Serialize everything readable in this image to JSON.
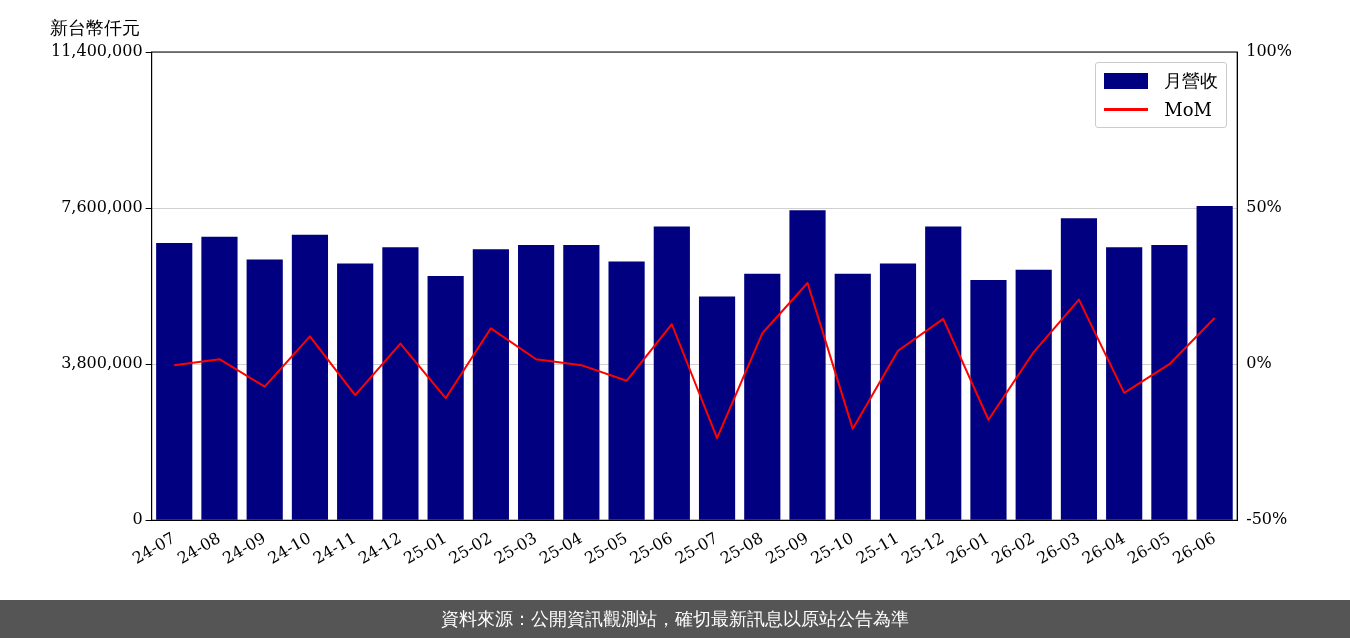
{
  "chart_data": {
    "type": "bar",
    "ylabel": "新台幣仟元",
    "categories": [
      "24-07",
      "24-08",
      "24-09",
      "24-10",
      "24-11",
      "24-12",
      "25-01",
      "25-02",
      "25-03",
      "25-04",
      "25-05",
      "25-06",
      "25-07",
      "25-08",
      "25-09",
      "25-10",
      "25-11",
      "25-12",
      "26-01",
      "26-02",
      "26-03",
      "26-04",
      "26-05",
      "26-06"
    ],
    "series": [
      {
        "name": "月營收",
        "color": "#000080",
        "values": [
          6750000,
          6900000,
          6350000,
          6950000,
          6250000,
          6650000,
          5950000,
          6600000,
          6700000,
          6700000,
          6300000,
          7150000,
          5450000,
          6000000,
          7550000,
          6000000,
          6250000,
          7150000,
          5850000,
          6100000,
          7350000,
          6650000,
          6700000,
          7650000
        ]
      },
      {
        "name": "MoM",
        "type": "line",
        "axis": "y2",
        "color": "#ff0000",
        "values": [
          -0.3,
          1.6,
          -7.2,
          8.9,
          -9.9,
          6.6,
          -10.9,
          11.5,
          1.6,
          -0.3,
          -5.3,
          12.8,
          -23.7,
          9.9,
          26,
          -20.7,
          4.3,
          14.5,
          -17.8,
          3.9,
          20.7,
          -9.2,
          0,
          14.8
        ]
      }
    ],
    "ylim": [
      0,
      11400000
    ],
    "yticks": [
      0,
      {
        "value": 3800000,
        "label": "3,800,000"
      },
      {
        "value": 7600000,
        "label": "7,600,000"
      },
      {
        "value": 11400000,
        "label": "11,400,000"
      }
    ],
    "y2lim": [
      -50,
      100
    ],
    "y2ticks": [
      {
        "value": -50,
        "label": "-50%"
      },
      {
        "value": 0,
        "label": "0%"
      },
      {
        "value": 50,
        "label": "50%"
      },
      {
        "value": 100,
        "label": "100%"
      }
    ],
    "grid": "y",
    "legend": "top right",
    "line_style": "solid",
    "marker": "none",
    "annotations": [
      "資料來源：公開資訊觀測站，確切最新訊息以原站公告為準"
    ]
  }
}
